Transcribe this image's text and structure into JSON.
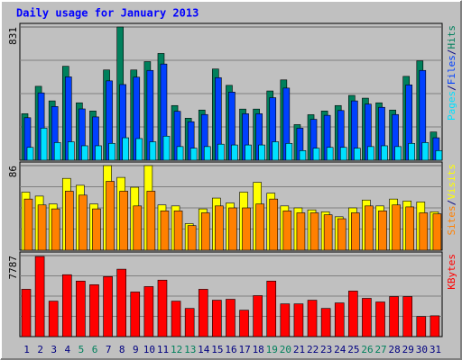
{
  "title": "Daily usage for January 2013",
  "legend_separator": "/",
  "chart_data": [
    {
      "type": "bar",
      "series": [
        {
          "name": "Hits",
          "color": "#00805c",
          "values": [
            290,
            461,
            370,
            586,
            358,
            307,
            563,
            831,
            563,
            615,
            666,
            341,
            262,
            313,
            569,
            467,
            319,
            319,
            432,
            501,
            222,
            284,
            307,
            341,
            404,
            387,
            358,
            313,
            523,
            620,
            176
          ]
        },
        {
          "name": "Files",
          "color": "#0040ff",
          "values": [
            265,
            420,
            335,
            520,
            320,
            270,
            495,
            472,
            518,
            560,
            600,
            305,
            240,
            285,
            515,
            425,
            290,
            290,
            390,
            450,
            200,
            255,
            280,
            310,
            370,
            350,
            330,
            285,
            470,
            560,
            140
          ]
        },
        {
          "name": "Pages",
          "color": "#00e0ff",
          "values": [
            80,
            200,
            110,
            115,
            90,
            90,
            105,
            140,
            135,
            115,
            150,
            85,
            75,
            85,
            100,
            95,
            95,
            95,
            115,
            105,
            60,
            75,
            80,
            80,
            75,
            85,
            90,
            85,
            105,
            110,
            60
          ]
        }
      ],
      "ylim": [
        0,
        831
      ],
      "yticks": [
        831
      ],
      "grid": true
    },
    {
      "type": "bar",
      "series": [
        {
          "name": "Visits",
          "color": "#ffff00",
          "values": [
            59,
            55,
            47,
            73,
            66,
            47,
            86,
            74,
            64,
            86,
            46,
            45,
            27,
            42,
            53,
            48,
            59,
            69,
            58,
            45,
            43,
            41,
            39,
            34,
            43,
            51,
            45,
            52,
            50,
            49,
            39
          ]
        },
        {
          "name": "Sites",
          "color": "#ff8000",
          "values": [
            52,
            46,
            42,
            60,
            56,
            42,
            70,
            60,
            45,
            60,
            40,
            40,
            25,
            38,
            45,
            43,
            43,
            47,
            52,
            40,
            38,
            38,
            36,
            32,
            38,
            45,
            40,
            46,
            44,
            38,
            37
          ]
        }
      ],
      "ylim": [
        0,
        86
      ],
      "yticks": [
        86
      ],
      "grid": true
    },
    {
      "type": "bar",
      "categories": [
        "1",
        "2",
        "3",
        "4",
        "5",
        "6",
        "7",
        "8",
        "9",
        "10",
        "11",
        "12",
        "13",
        "14",
        "15",
        "16",
        "17",
        "18",
        "19",
        "20",
        "21",
        "22",
        "23",
        "24",
        "25",
        "26",
        "27",
        "28",
        "29",
        "30",
        "31"
      ],
      "category_colors": [
        "#000080",
        "#000080",
        "#000080",
        "#000080",
        "#00805c",
        "#00805c",
        "#000080",
        "#000080",
        "#000080",
        "#000080",
        "#000080",
        "#00805c",
        "#00805c",
        "#000080",
        "#000080",
        "#000080",
        "#000080",
        "#000080",
        "#00805c",
        "#00805c",
        "#000080",
        "#000080",
        "#000080",
        "#000080",
        "#000080",
        "#00805c",
        "#00805c",
        "#000080",
        "#000080",
        "#000080",
        "#000080"
      ],
      "series": [
        {
          "name": "KBytes",
          "color": "#ff0000",
          "values": [
            4550,
            7700,
            3410,
            5950,
            5340,
            4990,
            5770,
            6480,
            4290,
            4810,
            5430,
            3410,
            2710,
            4550,
            3500,
            3590,
            2540,
            3940,
            5340,
            3150,
            3150,
            3500,
            2710,
            3240,
            4380,
            3680,
            3330,
            3850,
            3850,
            1930,
            2000
          ]
        }
      ],
      "ylim": [
        0,
        7787
      ],
      "yticks": [
        7787
      ],
      "grid": true
    }
  ]
}
